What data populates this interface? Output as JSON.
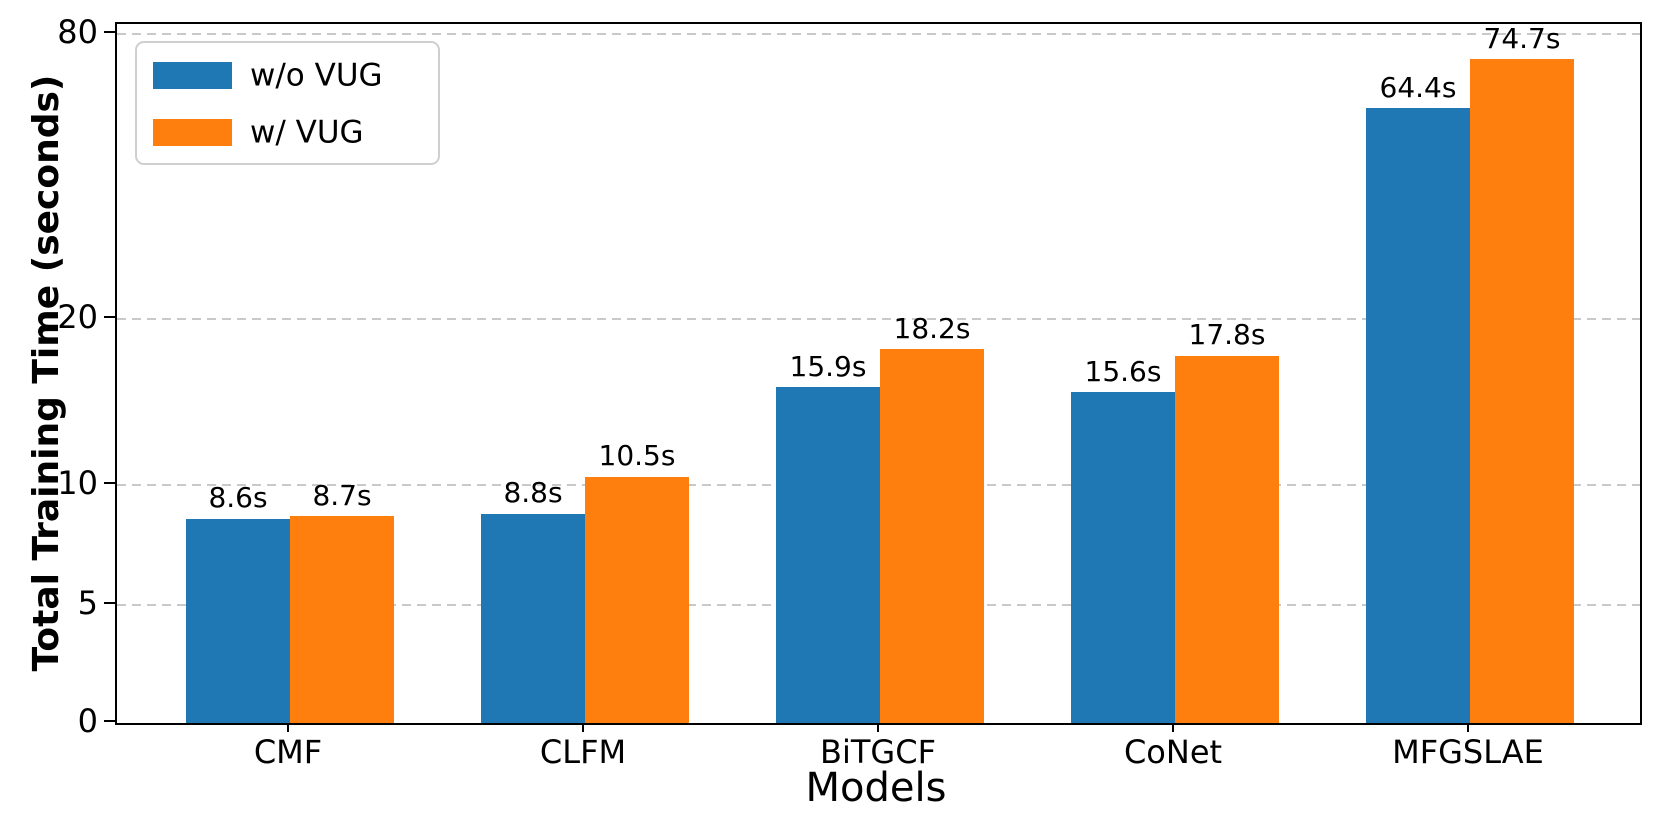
{
  "chart_data": {
    "type": "bar",
    "title": "",
    "xlabel": "Models",
    "ylabel": "Total Training Time (seconds)",
    "categories": [
      "CMF",
      "CLFM",
      "BiTGCF",
      "CoNet",
      "MFGSLAE"
    ],
    "series": [
      {
        "name": "w/o VUG",
        "color": "#1f77b4",
        "values": [
          8.6,
          8.8,
          15.9,
          15.6,
          64.4
        ],
        "labels": [
          "8.6s",
          "8.8s",
          "15.9s",
          "15.6s",
          "64.4s"
        ]
      },
      {
        "name": "w/ VUG",
        "color": "#ff7f0e",
        "values": [
          8.7,
          10.5,
          18.2,
          17.8,
          74.7
        ],
        "labels": [
          "8.7s",
          "10.5s",
          "18.2s",
          "17.8s",
          "74.7s"
        ]
      }
    ],
    "y_ticks": [
      0,
      5,
      10,
      20,
      80
    ],
    "y_tick_labels": [
      "0",
      "5",
      "10",
      "20",
      "80"
    ],
    "ylim": [
      0,
      88
    ],
    "axis_scale": "piecewise-linear between ticks 0,5,10,20,80",
    "grid": "horizontal dashed gray at y ticks 5,10,20,80",
    "grid_color": "#c9c9c9",
    "legend_position": "upper-left",
    "bar_label_suffix": "s"
  }
}
